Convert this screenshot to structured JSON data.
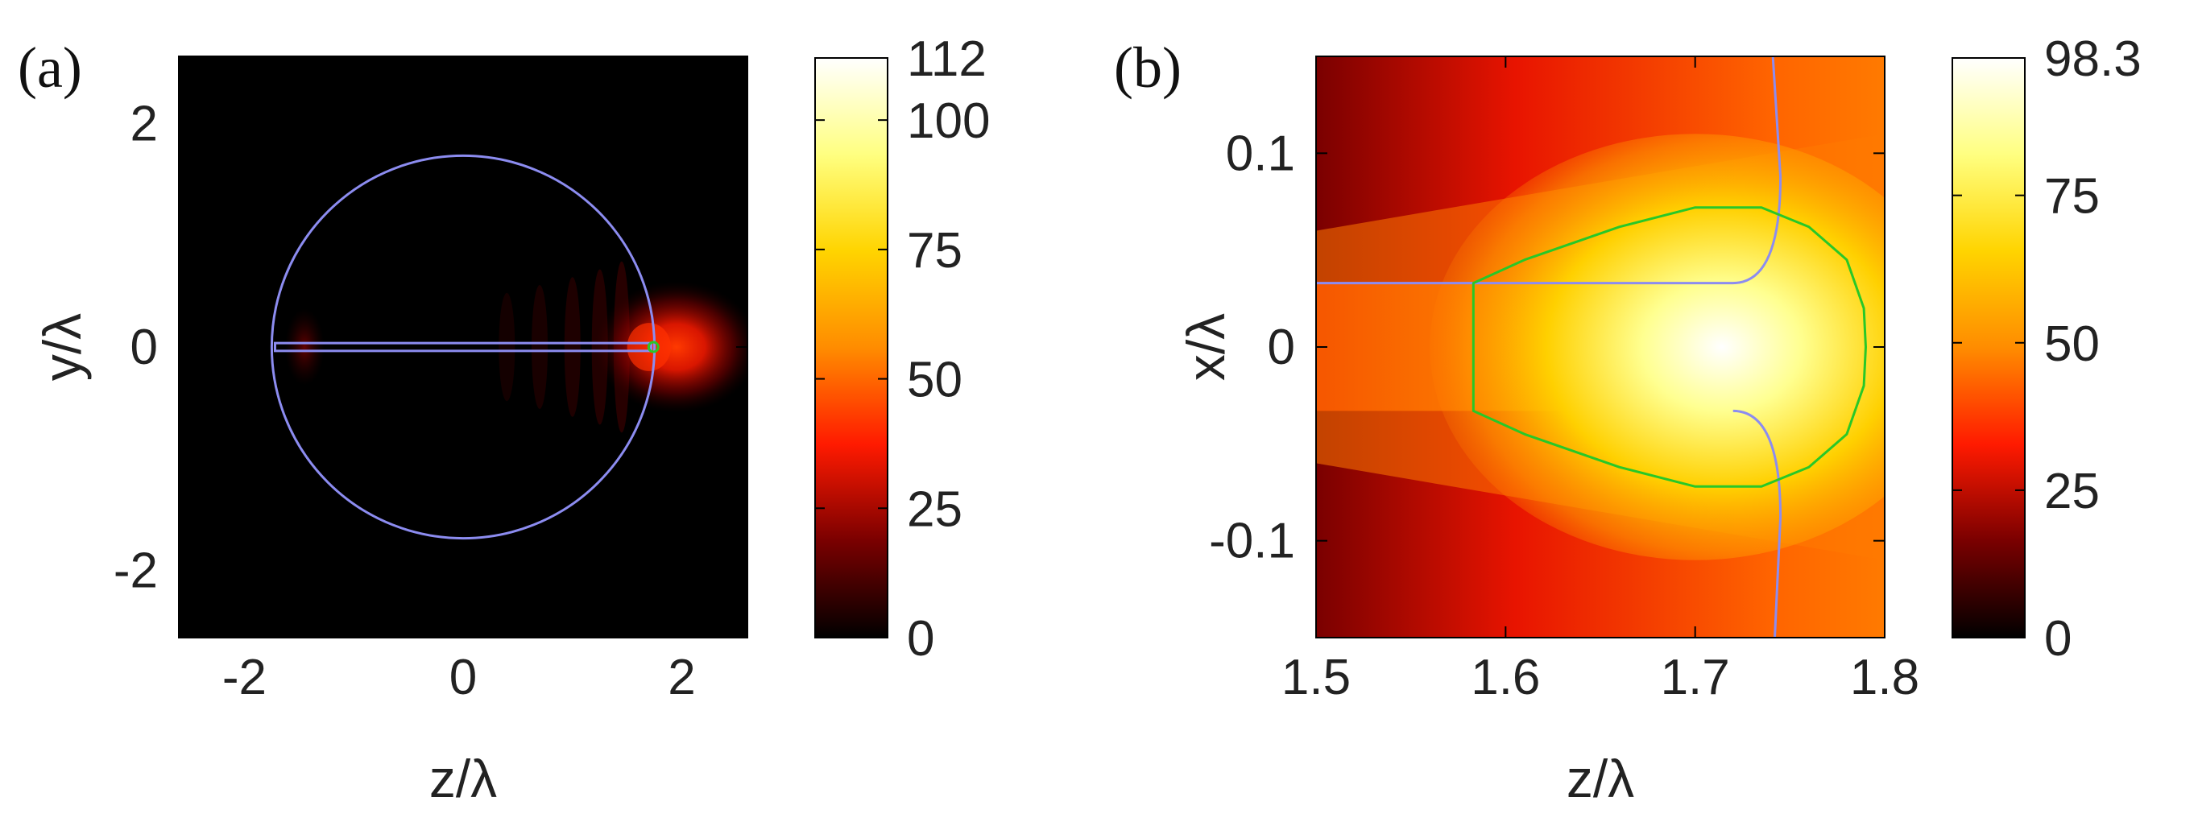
{
  "chart_data": [
    {
      "type": "heatmap",
      "panel_label": "(a)",
      "xlabel": "z/λ",
      "ylabel": "y/λ",
      "xlim": [
        -2.6,
        2.6
      ],
      "ylim": [
        -2.6,
        2.6
      ],
      "xticks": [
        -2,
        0,
        2
      ],
      "yticks": [
        -2,
        0,
        2
      ],
      "colorbar": {
        "min": 0,
        "max": 112,
        "ticks": [
          0,
          25,
          50,
          75,
          100,
          112
        ]
      },
      "colormap": [
        "#000000",
        "#7a0000",
        "#ff1a00",
        "#ff8c00",
        "#ffd400",
        "#ffff80",
        "#ffffff"
      ],
      "contour_colors": {
        "boundary": "#8c8cf0",
        "hotspot": "#28c828"
      },
      "sphere": {
        "center": [
          0,
          0
        ],
        "radius": 1.75
      },
      "slot": {
        "z_from": -1.72,
        "z_to": 1.72,
        "half_width": 0.035
      },
      "field": {
        "peak_z": 1.75,
        "peak_y": 0,
        "peak_value": 112
      }
    },
    {
      "type": "heatmap",
      "panel_label": "(b)",
      "xlabel": "z/λ",
      "ylabel": "x/λ",
      "xlim": [
        1.5,
        1.8
      ],
      "ylim": [
        -0.15,
        0.15
      ],
      "xticks": [
        1.5,
        1.6,
        1.7,
        1.8
      ],
      "yticks": [
        0.1,
        0,
        -0.1
      ],
      "colorbar": {
        "min": 0,
        "max": 98.3,
        "ticks": [
          0,
          25,
          50,
          75,
          98.3
        ]
      },
      "colormap": [
        "#000000",
        "#7a0000",
        "#ff1a00",
        "#ff8c00",
        "#ffd400",
        "#ffff80",
        "#ffffff"
      ],
      "contour_colors": {
        "boundary": "#8c8cf0",
        "hotspot": "#28c828"
      },
      "slot_half_width": 0.033,
      "slot_end_z": 1.72,
      "sphere_surface_z": 1.745,
      "hotspot_contour": [
        [
          1.583,
          0.033
        ],
        [
          1.61,
          0.045
        ],
        [
          1.66,
          0.062
        ],
        [
          1.7,
          0.072
        ],
        [
          1.735,
          0.072
        ],
        [
          1.76,
          0.062
        ],
        [
          1.78,
          0.045
        ],
        [
          1.789,
          0.02
        ],
        [
          1.79,
          0
        ],
        [
          1.789,
          -0.02
        ],
        [
          1.78,
          -0.045
        ],
        [
          1.76,
          -0.062
        ],
        [
          1.735,
          -0.072
        ],
        [
          1.7,
          -0.072
        ],
        [
          1.66,
          -0.062
        ],
        [
          1.61,
          -0.045
        ],
        [
          1.583,
          -0.033
        ]
      ]
    }
  ]
}
